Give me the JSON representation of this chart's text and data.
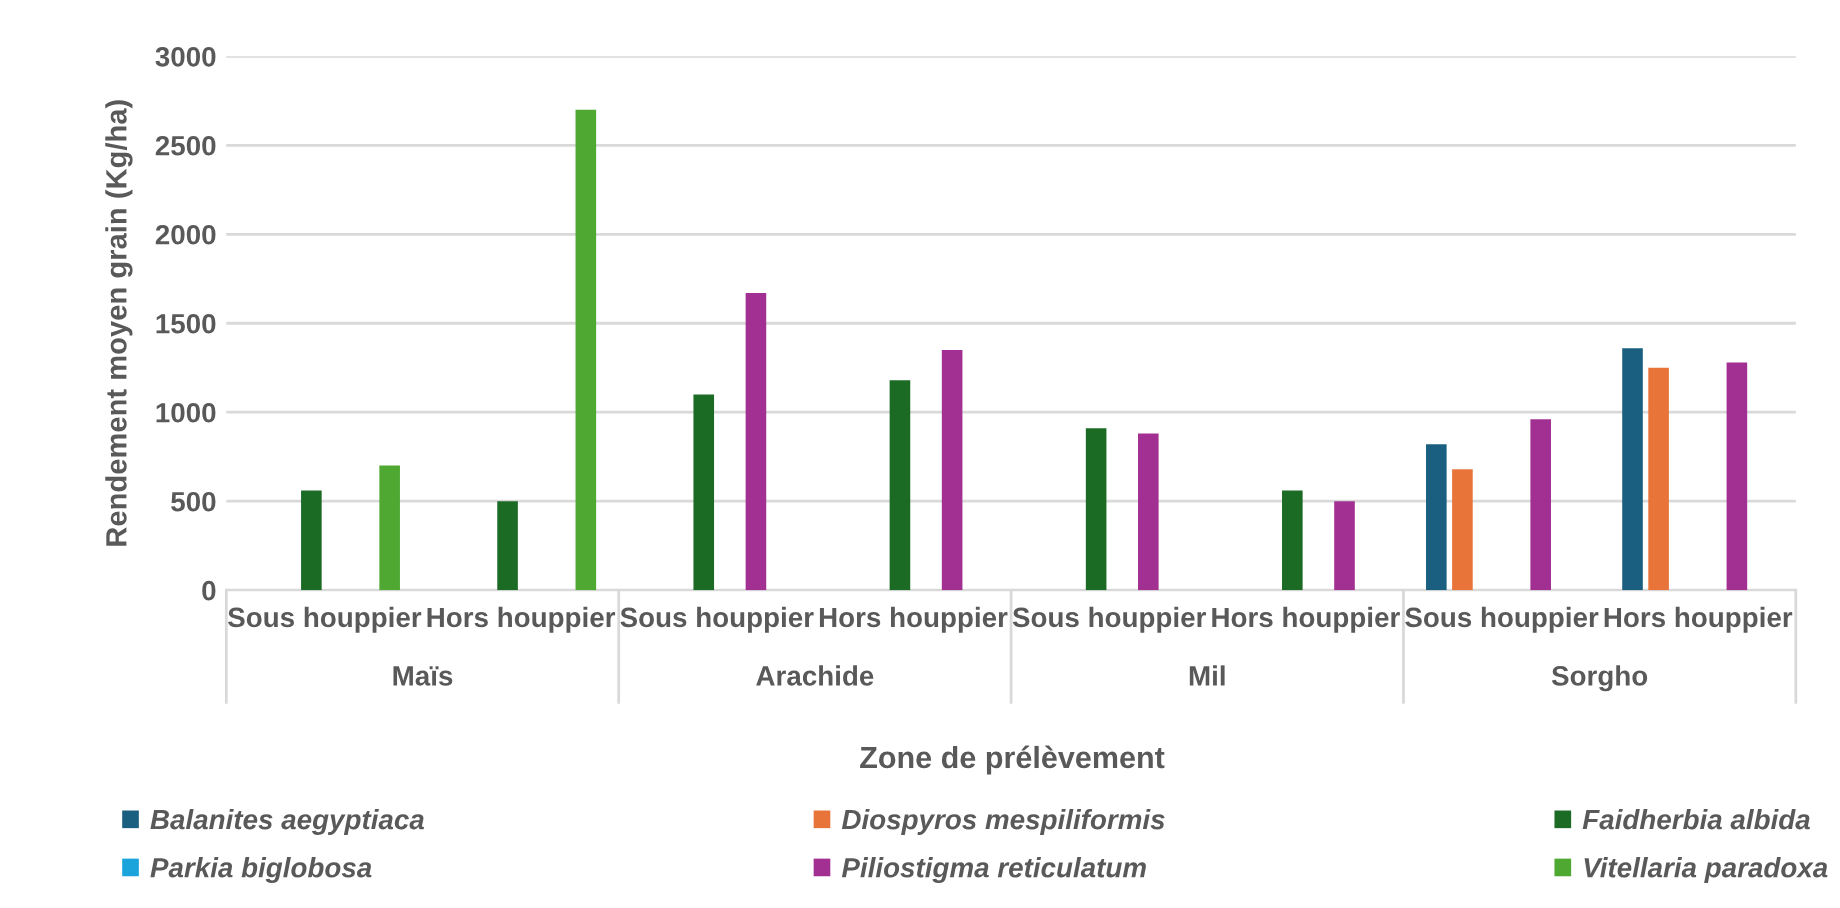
{
  "chart_data": {
    "type": "bar",
    "xlabel": "Zone de prélèvement",
    "ylabel": "Rendement moyen grain (Kg/ha)",
    "categories": [
      "Sous houppier",
      "Hors houppier",
      "Sous houppier",
      "Hors houppier",
      "Sous houppier",
      "Hors houppier",
      "Sous houppier",
      "Hors houppier"
    ],
    "annotations": [
      "Maïs",
      "Arachide",
      "Mil",
      "Sorgho"
    ],
    "series": [
      {
        "name": "Balanites aegyptiaca",
        "color": "#1a5e80",
        "values": [
          null,
          null,
          null,
          null,
          null,
          null,
          820,
          1360
        ]
      },
      {
        "name": "Diospyros mespiliformis",
        "color": "#e9743a",
        "values": [
          null,
          null,
          null,
          null,
          null,
          null,
          680,
          1250
        ]
      },
      {
        "name": "Faidherbia albida",
        "color": "#1b6b25",
        "values": [
          560,
          500,
          1100,
          1180,
          910,
          560,
          null,
          null
        ]
      },
      {
        "name": "Parkia biglobosa",
        "color": "#1ba4dc",
        "values": [
          null,
          null,
          null,
          null,
          null,
          null,
          null,
          null
        ]
      },
      {
        "name": "Piliostigma reticulatum",
        "color": "#a23092",
        "values": [
          null,
          null,
          1670,
          1350,
          880,
          500,
          960,
          1280
        ]
      },
      {
        "name": "Vitellaria paradoxa",
        "color": "#4ea832",
        "values": [
          700,
          2700,
          null,
          null,
          null,
          null,
          null,
          null
        ]
      }
    ],
    "ylim": [
      0,
      3000
    ],
    "yticks": [
      0,
      500,
      1000,
      1500,
      2000,
      2500,
      3000
    ],
    "grid": "y",
    "legend": "bottom"
  }
}
